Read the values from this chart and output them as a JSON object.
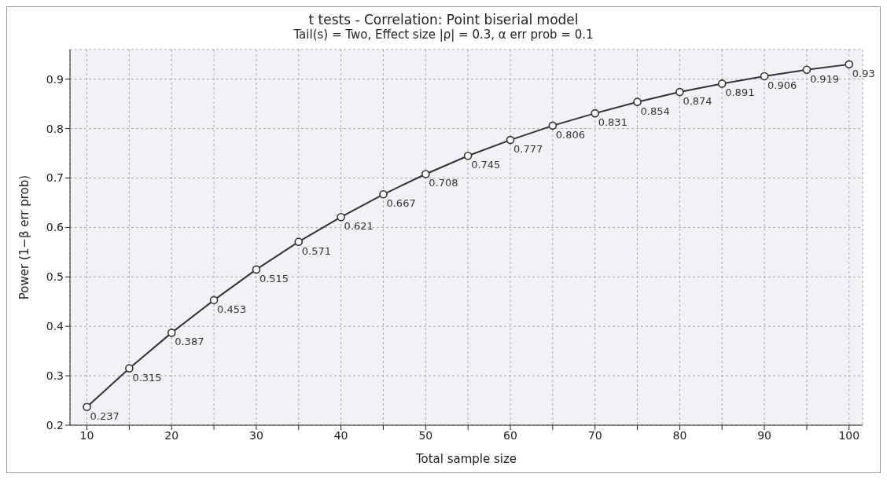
{
  "chart_data": {
    "type": "line",
    "title": "t tests - Correlation: Point biserial model",
    "subtitle": "Tail(s) = Two, Effect size |ρ| = 0.3, α err prob = 0.1",
    "xlabel": "Total sample size",
    "ylabel": "Power (1−β err prob)",
    "x": [
      10,
      15,
      20,
      25,
      30,
      35,
      40,
      45,
      50,
      55,
      60,
      65,
      70,
      75,
      80,
      85,
      90,
      95,
      100
    ],
    "series": [
      {
        "color": "#333333",
        "values": [
          0.237,
          0.315,
          0.387,
          0.453,
          0.515,
          0.571,
          0.621,
          0.667,
          0.708,
          0.745,
          0.777,
          0.806,
          0.831,
          0.854,
          0.874,
          0.891,
          0.906,
          0.919,
          0.93
        ]
      }
    ],
    "xlim": [
      8,
      101.6
    ],
    "ylim": [
      0.2,
      0.96
    ],
    "xticks": [
      10,
      {
        "value": 15,
        "label": null
      },
      20,
      {
        "value": 25,
        "label": null
      },
      30,
      {
        "value": 35,
        "label": null
      },
      40,
      {
        "value": 45,
        "label": null
      },
      50,
      {
        "value": 55,
        "label": null
      },
      60,
      {
        "value": 65,
        "label": null
      },
      70,
      {
        "value": 75,
        "label": null
      },
      80,
      {
        "value": 85,
        "label": null
      },
      90,
      {
        "value": 95,
        "label": null
      },
      100
    ],
    "yticks": [
      0.2,
      0.3,
      0.4,
      0.5,
      0.6,
      0.7,
      0.8,
      0.9
    ],
    "grid": true,
    "marker": "circle",
    "line_style": "solid",
    "data_labels": true
  }
}
